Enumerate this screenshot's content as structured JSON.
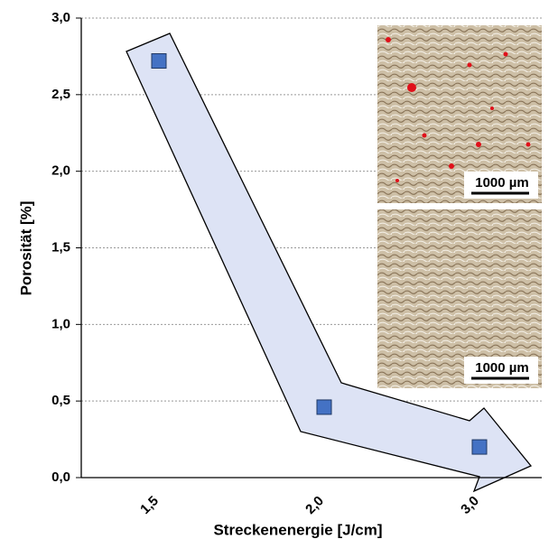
{
  "chart_data": {
    "type": "scatter",
    "x_label": "Streckenenergie [J/cm]",
    "y_label": "Porosität [%]",
    "categories": [
      "1,5",
      "2,0",
      "3,0"
    ],
    "values": [
      2.72,
      0.46,
      0.2
    ],
    "color": "#4472c4",
    "ylim": [
      0,
      3
    ],
    "yticks": [
      {
        "value": 0,
        "label": "0,0"
      },
      {
        "value": 0.5,
        "label": "0,5"
      },
      {
        "value": 1,
        "label": "1,0"
      },
      {
        "value": 1.5,
        "label": "1,5"
      },
      {
        "value": 2,
        "label": "2,0"
      },
      {
        "value": 2.5,
        "label": "2,5"
      },
      {
        "value": 3,
        "label": "3,0"
      }
    ],
    "grid": true,
    "annotations": [
      "1000 µm",
      "1000 µm"
    ]
  }
}
